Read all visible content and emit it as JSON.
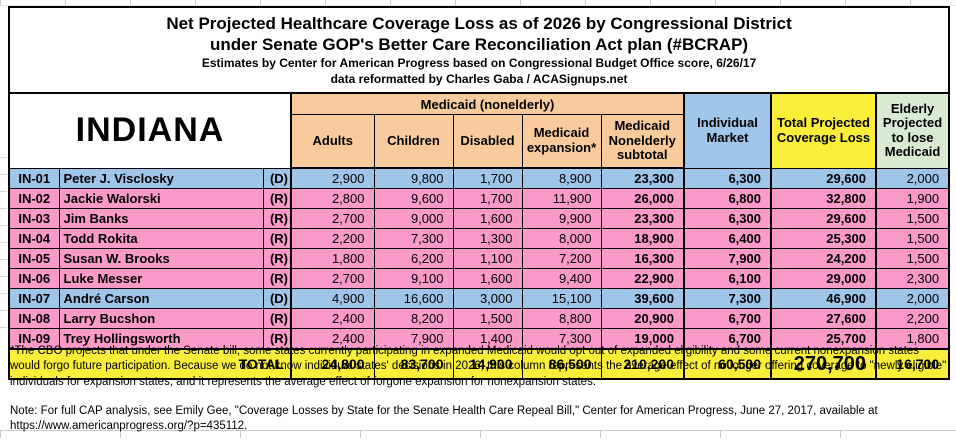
{
  "title": {
    "line1": "Net Projected Healthcare Coverage Loss as of 2026 by Congressional District",
    "line2": "under Senate GOP's Better Care Reconciliation Act plan (#BCRAP)",
    "line3": "Estimates by Center for American Progress based on Congressional Budget Office score, 6/26/17",
    "line4": "data reformatted by Charles Gaba / ACASignups.net"
  },
  "chart_data": {
    "type": "table",
    "state": "INDIANA",
    "medicaid_group_label": "Medicaid (nonelderly)",
    "columns": [
      "Adults",
      "Children",
      "Disabled",
      "Medicaid expansion*",
      "Medicaid Nonelderly subtotal",
      "Individual Market",
      "Total Projected Coverage Loss",
      "Elderly Projected to lose Medicaid"
    ],
    "rows": [
      {
        "district": "IN-01",
        "name": "Peter J. Visclosky",
        "party": "(D)",
        "values": [
          "2,900",
          "9,800",
          "1,700",
          "8,900",
          "23,300",
          "6,300",
          "29,600",
          "2,000"
        ]
      },
      {
        "district": "IN-02",
        "name": "Jackie Walorski",
        "party": "(R)",
        "values": [
          "2,800",
          "9,600",
          "1,700",
          "11,900",
          "26,000",
          "6,800",
          "32,800",
          "1,900"
        ]
      },
      {
        "district": "IN-03",
        "name": "Jim Banks",
        "party": "(R)",
        "values": [
          "2,700",
          "9,000",
          "1,600",
          "9,900",
          "23,300",
          "6,300",
          "29,600",
          "1,500"
        ]
      },
      {
        "district": "IN-04",
        "name": "Todd Rokita",
        "party": "(R)",
        "values": [
          "2,200",
          "7,300",
          "1,300",
          "8,000",
          "18,900",
          "6,400",
          "25,300",
          "1,500"
        ]
      },
      {
        "district": "IN-05",
        "name": "Susan W. Brooks",
        "party": "(R)",
        "values": [
          "1,800",
          "6,200",
          "1,100",
          "7,200",
          "16,300",
          "7,900",
          "24,200",
          "1,500"
        ]
      },
      {
        "district": "IN-06",
        "name": "Luke Messer",
        "party": "(R)",
        "values": [
          "2,700",
          "9,100",
          "1,600",
          "9,400",
          "22,900",
          "6,100",
          "29,000",
          "2,300"
        ]
      },
      {
        "district": "IN-07",
        "name": "André Carson",
        "party": "(D)",
        "values": [
          "4,900",
          "16,600",
          "3,000",
          "15,100",
          "39,600",
          "7,300",
          "46,900",
          "2,000"
        ]
      },
      {
        "district": "IN-08",
        "name": "Larry Bucshon",
        "party": "(R)",
        "values": [
          "2,400",
          "8,200",
          "1,500",
          "8,800",
          "20,900",
          "6,700",
          "27,600",
          "2,200"
        ]
      },
      {
        "district": "IN-09",
        "name": "Trey Hollingsworth",
        "party": "(R)",
        "values": [
          "2,400",
          "7,900",
          "1,400",
          "7,300",
          "19,000",
          "6,700",
          "25,700",
          "1,800"
        ]
      }
    ],
    "total": {
      "label": "TOTAL",
      "values": [
        "24,800",
        "83,700",
        "14,900",
        "86,500",
        "210,200",
        "60,500",
        "270,700",
        "16,700"
      ]
    }
  },
  "footnotes": {
    "asterisk_note": "*The CBO projects that under the Senate bill, some states currently participating in expanded Medicaid would opt out of expanded eligibility and some current nonexpansion states would forgo future participation. Because we do not know individual states' decisions in 2026, this column represents the average effect of no longer offering coverage to \"newly eligible\" individuals for expansion states, and it represents the average effect of forgone expansion for nonexpansion states.",
    "cap_note": "Note: For full CAP analysis, see Emily Gee, \"Coverage Losses by State for the Senate Health Care Repeal Bill,\" Center for American Progress, June 27, 2017, available at https://www.americanprogress.org/?p=435112."
  },
  "colors": {
    "medicaid_header": "#F9CB9C",
    "democrat_row": "#9FC5E8",
    "republican_row": "#FA9AC8",
    "coverage_loss_yellow": "#FAEE3B",
    "elderly_header_green": "#D9EAD3"
  }
}
